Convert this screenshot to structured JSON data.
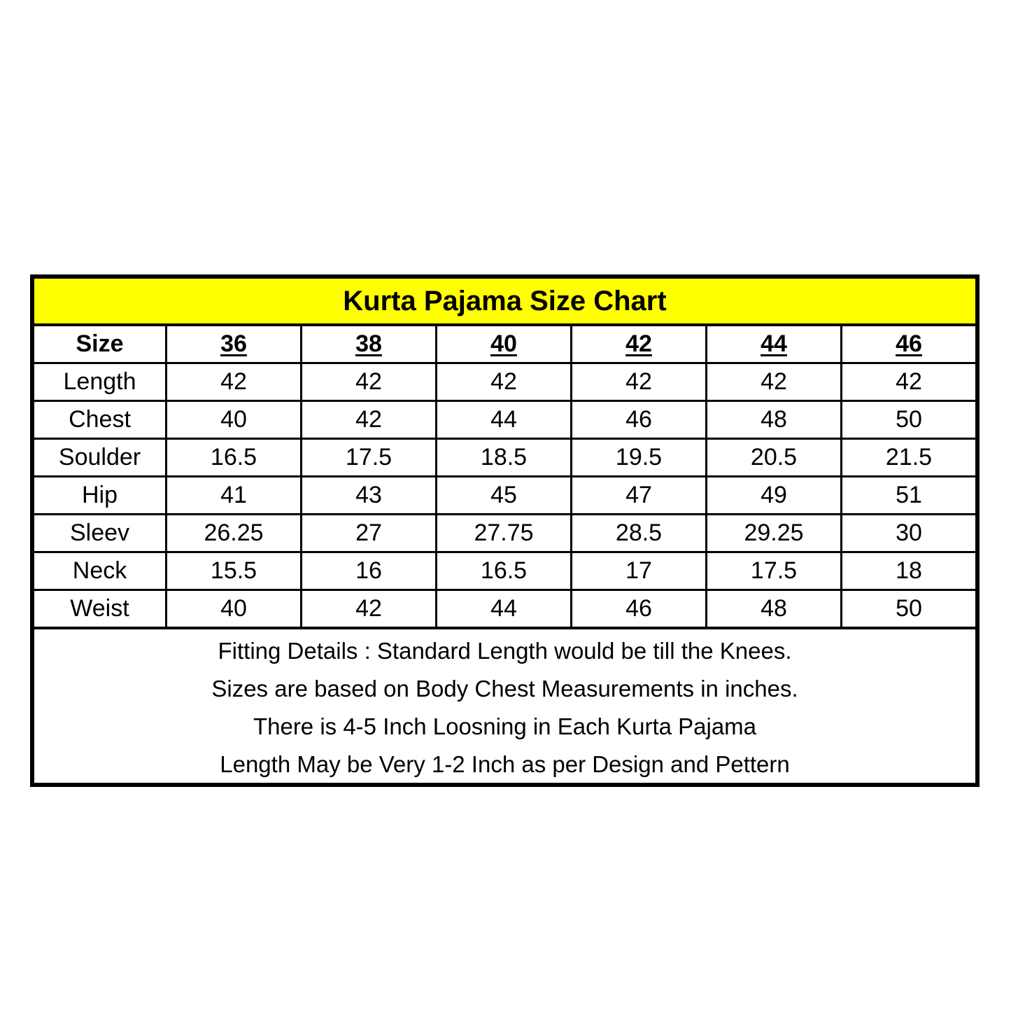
{
  "title": "Kurta Pajama Size Chart",
  "table": {
    "header": [
      "Size",
      "36",
      "38",
      "40",
      "42",
      "44",
      "46"
    ],
    "rows": [
      [
        "Length",
        "42",
        "42",
        "42",
        "42",
        "42",
        "42"
      ],
      [
        "Chest",
        "40",
        "42",
        "44",
        "46",
        "48",
        "50"
      ],
      [
        "Soulder",
        "16.5",
        "17.5",
        "18.5",
        "19.5",
        "20.5",
        "21.5"
      ],
      [
        "Hip",
        "41",
        "43",
        "45",
        "47",
        "49",
        "51"
      ],
      [
        "Sleev",
        "26.25",
        "27",
        "27.75",
        "28.5",
        "29.25",
        "30"
      ],
      [
        "Neck",
        "15.5",
        "16",
        "16.5",
        "17",
        "17.5",
        "18"
      ],
      [
        "Weist",
        "40",
        "42",
        "44",
        "46",
        "48",
        "50"
      ]
    ]
  },
  "notes": [
    "Fitting Details : Standard Length would be till the Knees.",
    "Sizes are based on Body Chest Measurements in inches.",
    "There is 4-5 Inch Loosning in Each Kurta Pajama",
    "Length May be Very 1-2 Inch as per Design and Pettern"
  ],
  "colors": {
    "title_background": "#ffff00",
    "border": "#000000"
  }
}
